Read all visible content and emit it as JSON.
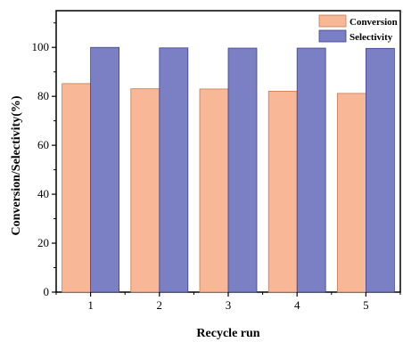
{
  "chart_data": {
    "type": "bar",
    "xlabel": "Recycle run",
    "ylabel": "Conversion/Selectivity(%)",
    "categories": [
      "1",
      "2",
      "3",
      "4",
      "5"
    ],
    "ylim": [
      0,
      115
    ],
    "yticks": [
      0,
      20,
      40,
      60,
      80,
      100
    ],
    "legend_position": "top-right",
    "grid": false,
    "series": [
      {
        "name": "Conversion",
        "values": [
          85.2,
          83.1,
          83.0,
          82.1,
          81.2
        ],
        "color": "#F8B796",
        "edge": "#C97A55"
      },
      {
        "name": "Selectivity",
        "values": [
          100,
          99.8,
          99.7,
          99.7,
          99.6
        ],
        "color": "#7B7FC4",
        "edge": "#3F4390"
      }
    ]
  }
}
